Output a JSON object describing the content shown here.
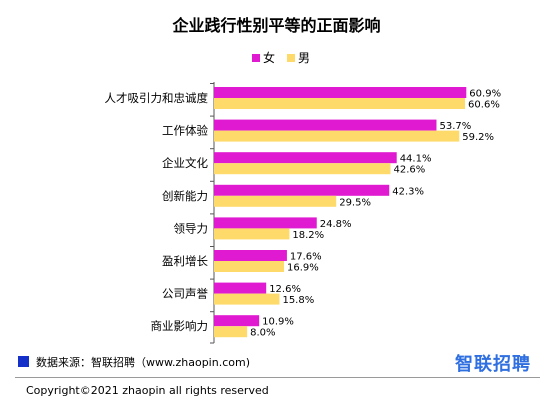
{
  "chart_data": {
    "type": "bar",
    "orientation": "horizontal",
    "title": "企业践行性别平等的正面影响",
    "categories": [
      "人才吸引力和忠诚度",
      "工作体验",
      "企业文化",
      "创新能力",
      "领导力",
      "盈利增长",
      "公司声誉",
      "商业影响力"
    ],
    "series": [
      {
        "name": "女",
        "color": "#e01ad0",
        "values": [
          60.9,
          53.7,
          44.1,
          42.3,
          24.8,
          17.6,
          12.6,
          10.9
        ],
        "labels": [
          "60.9%",
          "53.7%",
          "44.1%",
          "42.3%",
          "24.8%",
          "17.6%",
          "12.6%",
          "10.9%"
        ]
      },
      {
        "name": "男",
        "color": "#fdda6a",
        "values": [
          60.6,
          59.2,
          42.6,
          29.5,
          18.2,
          16.9,
          15.8,
          8.0
        ],
        "labels": [
          "60.6%",
          "59.2%",
          "42.6%",
          "29.5%",
          "18.2%",
          "16.9%",
          "15.8%",
          "8.0%"
        ]
      }
    ],
    "xlim": [
      0,
      70
    ],
    "legend_position": "top",
    "grid": false
  },
  "footer": {
    "source": "数据来源：智联招聘（www.zhaopin.com)",
    "logo": "智联招聘",
    "copyright": "Copyright©2021 zhaopin all rights reserved"
  }
}
